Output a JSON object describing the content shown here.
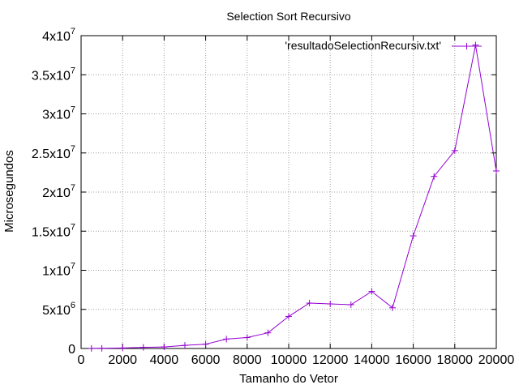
{
  "chart_data": {
    "type": "line",
    "title": "Selection Sort Recursivo",
    "xlabel": "Tamanho do Vetor",
    "ylabel": "Microsegundos",
    "xlim": [
      0,
      20000
    ],
    "ylim": [
      0,
      40000000
    ],
    "grid": true,
    "legend_position": "top-right",
    "x_ticks": [
      {
        "value": 0,
        "label": "0"
      },
      {
        "value": 2000,
        "label": "2000"
      },
      {
        "value": 4000,
        "label": "4000"
      },
      {
        "value": 6000,
        "label": "6000"
      },
      {
        "value": 8000,
        "label": "8000"
      },
      {
        "value": 10000,
        "label": "10000"
      },
      {
        "value": 12000,
        "label": "12000"
      },
      {
        "value": 14000,
        "label": "14000"
      },
      {
        "value": 16000,
        "label": "16000"
      },
      {
        "value": 18000,
        "label": "18000"
      },
      {
        "value": 20000,
        "label": "20000"
      }
    ],
    "y_ticks": [
      {
        "value": 0,
        "mantissa": "0",
        "exponent": ""
      },
      {
        "value": 5000000,
        "mantissa": "5x10",
        "exponent": "6"
      },
      {
        "value": 10000000,
        "mantissa": "1x10",
        "exponent": "7"
      },
      {
        "value": 15000000,
        "mantissa": "1.5x10",
        "exponent": "7"
      },
      {
        "value": 20000000,
        "mantissa": "2x10",
        "exponent": "7"
      },
      {
        "value": 25000000,
        "mantissa": "2.5x10",
        "exponent": "7"
      },
      {
        "value": 30000000,
        "mantissa": "3x10",
        "exponent": "7"
      },
      {
        "value": 35000000,
        "mantissa": "3.5x10",
        "exponent": "7"
      },
      {
        "value": 40000000,
        "mantissa": "4x10",
        "exponent": "7"
      }
    ],
    "series": [
      {
        "name": "'resultadoSelectionRecursiv.txt'",
        "color": "#9400d3",
        "x": [
          500,
          1000,
          2000,
          3000,
          4000,
          5000,
          6000,
          7000,
          8000,
          9000,
          10000,
          11000,
          12000,
          13000,
          14000,
          15000,
          16000,
          17000,
          18000,
          19000,
          20000
        ],
        "y": [
          10000,
          20000,
          60000,
          150000,
          200000,
          400000,
          550000,
          1200000,
          1400000,
          2000000,
          4100000,
          5800000,
          5700000,
          5600000,
          7300000,
          5200000,
          14400000,
          22000000,
          25300000,
          38800000,
          22700000
        ]
      }
    ]
  }
}
